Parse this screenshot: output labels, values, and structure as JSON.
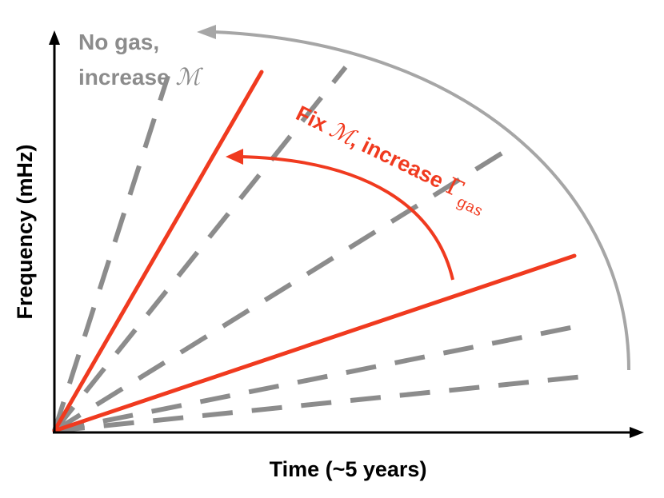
{
  "axes": {
    "x_label": "Time (~5 years)",
    "y_label": "Frequency (mHz)"
  },
  "annotations": {
    "gray": {
      "line1": "No gas,",
      "line2_prefix": "increase ",
      "chirp_mass_symbol": "ℳ"
    },
    "red": {
      "prefix": "Fix ",
      "chirp_mass_symbol": "ℳ",
      "middle": ", increase ",
      "gamma_symbol": "Γ",
      "gamma_subscript": "gas"
    }
  },
  "colors": {
    "red": "#f03a1f",
    "gray_dashed": "#8c8c8c",
    "gray_arc": "#a6a6a6",
    "gray_text": "#8c8c8c",
    "axis": "#000000"
  },
  "lines": {
    "solid_red_count": 2,
    "dashed_gray_count": 5
  }
}
